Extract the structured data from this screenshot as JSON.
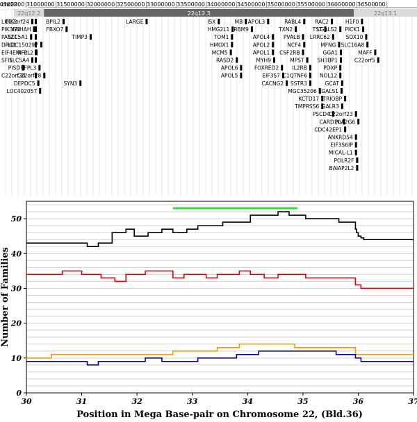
{
  "genome_browser": {
    "chrom_label": "chr22:",
    "coords": [
      "30500000",
      "31000000",
      "31500000",
      "32000000",
      "32500000",
      "33000000",
      "33500000",
      "34000000",
      "34500000",
      "35000000",
      "35500000",
      "36000000",
      "36500000"
    ],
    "bands": [
      {
        "label": "22q12.2",
        "start": 30.3,
        "end": 30.8,
        "color": "#d9d9d9",
        "text_color": "#777777"
      },
      {
        "label": "22q12.3",
        "start": 30.8,
        "end": 35.95,
        "color": "#666666",
        "text_color": "#ffffff"
      },
      {
        "label": "22q13.1",
        "start": 35.95,
        "end": 37.0,
        "color": "#d9d9d9",
        "text_color": "#777777"
      }
    ],
    "genes": [
      {
        "name": "LIMK2",
        "pos": 30.3,
        "row": 0,
        "side": "left"
      },
      {
        "name": "PIK3IP1",
        "pos": 30.3,
        "row": 1,
        "side": "left"
      },
      {
        "name": "PATZ1",
        "pos": 30.3,
        "row": 2,
        "side": "left"
      },
      {
        "name": "DRG1",
        "pos": 30.3,
        "row": 3,
        "side": "left"
      },
      {
        "name": "EIF4ENIF1",
        "pos": 30.3,
        "row": 4,
        "side": "left"
      },
      {
        "name": "SFI1",
        "pos": 30.3,
        "row": 5,
        "side": "left"
      },
      {
        "name": "C22orf30",
        "pos": 30.3,
        "row": 7,
        "side": "left"
      },
      {
        "name": "C22orf24",
        "pos": 30.6,
        "row": 0,
        "side": "right"
      },
      {
        "name": "YWHAH",
        "pos": 30.63,
        "row": 1,
        "side": "right"
      },
      {
        "name": "SLC5A1",
        "pos": 30.58,
        "row": 2,
        "side": "right"
      },
      {
        "name": "LOC150297",
        "pos": 30.75,
        "row": 3,
        "side": "right"
      },
      {
        "name": "RFPL2",
        "pos": 30.67,
        "row": 4,
        "side": "right"
      },
      {
        "name": "SLC5A4",
        "pos": 30.6,
        "row": 5,
        "side": "right"
      },
      {
        "name": "PISD",
        "pos": 30.45,
        "row": 6,
        "side": "right"
      },
      {
        "name": "RFPL3",
        "pos": 30.72,
        "row": 6,
        "side": "right"
      },
      {
        "name": "C22orf28",
        "pos": 30.8,
        "row": 7,
        "side": "right"
      },
      {
        "name": "DEPDC5",
        "pos": 30.7,
        "row": 8,
        "side": "right"
      },
      {
        "name": "LOC402057",
        "pos": 30.73,
        "row": 9,
        "side": "right"
      },
      {
        "name": "BPIL2",
        "pos": 31.12,
        "row": 0,
        "side": "right"
      },
      {
        "name": "FBXO7",
        "pos": 31.17,
        "row": 1,
        "side": "right"
      },
      {
        "name": "TIMP3",
        "pos": 31.57,
        "row": 2,
        "side": "right"
      },
      {
        "name": "SYN3",
        "pos": 31.4,
        "row": 8,
        "side": "right"
      },
      {
        "name": "LARGE",
        "pos": 32.5,
        "row": 0,
        "side": "right"
      },
      {
        "name": "ISX",
        "pos": 33.7,
        "row": 0,
        "side": "right"
      },
      {
        "name": "HMG2L1",
        "pos": 33.93,
        "row": 1,
        "side": "right"
      },
      {
        "name": "TOM1",
        "pos": 33.92,
        "row": 2,
        "side": "right"
      },
      {
        "name": "HMOX1",
        "pos": 33.92,
        "row": 3,
        "side": "right"
      },
      {
        "name": "MCM5",
        "pos": 33.9,
        "row": 4,
        "side": "right"
      },
      {
        "name": "RASD2",
        "pos": 34.0,
        "row": 5,
        "side": "right"
      },
      {
        "name": "APOL6",
        "pos": 34.07,
        "row": 6,
        "side": "right"
      },
      {
        "name": "APOL5",
        "pos": 34.07,
        "row": 7,
        "side": "right"
      },
      {
        "name": "MB",
        "pos": 34.15,
        "row": 0,
        "side": "right"
      },
      {
        "name": "RBM9",
        "pos": 34.25,
        "row": 1,
        "side": "right"
      },
      {
        "name": "APOL3",
        "pos": 34.52,
        "row": 0,
        "side": "right"
      },
      {
        "name": "APOL4",
        "pos": 34.6,
        "row": 2,
        "side": "right"
      },
      {
        "name": "APOL2",
        "pos": 34.6,
        "row": 3,
        "side": "right"
      },
      {
        "name": "APOL1",
        "pos": 34.6,
        "row": 4,
        "side": "right"
      },
      {
        "name": "MYH9",
        "pos": 34.62,
        "row": 5,
        "side": "right"
      },
      {
        "name": "FOXRED2",
        "pos": 34.75,
        "row": 6,
        "side": "right"
      },
      {
        "name": "EIF3S7",
        "pos": 34.77,
        "row": 7,
        "side": "right"
      },
      {
        "name": "CACNG2",
        "pos": 34.83,
        "row": 8,
        "side": "right"
      },
      {
        "name": "TXN2",
        "pos": 34.98,
        "row": 1,
        "side": "right"
      },
      {
        "name": "RABL4",
        "pos": 35.12,
        "row": 0,
        "side": "right"
      },
      {
        "name": "PVALB",
        "pos": 35.1,
        "row": 2,
        "side": "right"
      },
      {
        "name": "NCF4",
        "pos": 35.12,
        "row": 3,
        "side": "right"
      },
      {
        "name": "CSF2RB",
        "pos": 35.1,
        "row": 4,
        "side": "right"
      },
      {
        "name": "MPST",
        "pos": 35.17,
        "row": 5,
        "side": "right"
      },
      {
        "name": "IL2RB",
        "pos": 35.22,
        "row": 6,
        "side": "right"
      },
      {
        "name": "C1QTNF6",
        "pos": 35.22,
        "row": 7,
        "side": "right"
      },
      {
        "name": "SSTR3",
        "pos": 35.22,
        "row": 8,
        "side": "right"
      },
      {
        "name": "MGC35206",
        "pos": 35.38,
        "row": 9,
        "side": "right"
      },
      {
        "name": "KCTD17",
        "pos": 35.42,
        "row": 10,
        "side": "right"
      },
      {
        "name": "TMPRSS6",
        "pos": 35.42,
        "row": 11,
        "side": "right"
      },
      {
        "name": "TST",
        "pos": 35.47,
        "row": 1,
        "side": "right"
      },
      {
        "name": "RAC2",
        "pos": 35.58,
        "row": 0,
        "side": "right"
      },
      {
        "name": "LRRC62",
        "pos": 35.6,
        "row": 2,
        "side": "right"
      },
      {
        "name": "LGALS2",
        "pos": 35.72,
        "row": 1,
        "side": "right"
      },
      {
        "name": "MFNG",
        "pos": 35.7,
        "row": 3,
        "side": "right"
      },
      {
        "name": "GGA1",
        "pos": 35.73,
        "row": 4,
        "side": "right"
      },
      {
        "name": "SH3BP1",
        "pos": 35.73,
        "row": 5,
        "side": "right"
      },
      {
        "name": "PDXP",
        "pos": 35.72,
        "row": 6,
        "side": "right"
      },
      {
        "name": "NOL12",
        "pos": 35.72,
        "row": 7,
        "side": "right"
      },
      {
        "name": "GCAT",
        "pos": 35.75,
        "row": 8,
        "side": "right"
      },
      {
        "name": "LGALS1",
        "pos": 35.74,
        "row": 9,
        "side": "right"
      },
      {
        "name": "TRIOBP",
        "pos": 35.8,
        "row": 10,
        "side": "right"
      },
      {
        "name": "GALR3",
        "pos": 35.75,
        "row": 11,
        "side": "right"
      },
      {
        "name": "PSCD4",
        "pos": 35.6,
        "row": 12,
        "side": "right"
      },
      {
        "name": "C22orf23",
        "pos": 35.98,
        "row": 12,
        "side": "right"
      },
      {
        "name": "CARD10",
        "pos": 35.78,
        "row": 13,
        "side": "right"
      },
      {
        "name": "PLA2G6",
        "pos": 36.02,
        "row": 13,
        "side": "right"
      },
      {
        "name": "CDC42EP1",
        "pos": 35.8,
        "row": 14,
        "side": "right"
      },
      {
        "name": "ANKRD54",
        "pos": 35.98,
        "row": 15,
        "side": "right"
      },
      {
        "name": "EIF3S6IP",
        "pos": 35.98,
        "row": 16,
        "side": "right"
      },
      {
        "name": "MICAL-L1",
        "pos": 35.98,
        "row": 17,
        "side": "right"
      },
      {
        "name": "POLR2F",
        "pos": 36.0,
        "row": 18,
        "side": "right"
      },
      {
        "name": "BAIAP2L2",
        "pos": 36.0,
        "row": 19,
        "side": "right"
      },
      {
        "name": "H1F0",
        "pos": 36.08,
        "row": 0,
        "side": "right"
      },
      {
        "name": "PICK1",
        "pos": 36.1,
        "row": 1,
        "side": "right"
      },
      {
        "name": "SOX10",
        "pos": 36.15,
        "row": 2,
        "side": "right"
      },
      {
        "name": "SLC16A8",
        "pos": 36.17,
        "row": 3,
        "side": "right"
      },
      {
        "name": "MAFF",
        "pos": 36.3,
        "row": 4,
        "side": "right"
      },
      {
        "name": "C22orf5",
        "pos": 36.35,
        "row": 5,
        "side": "right"
      }
    ]
  },
  "chart_data": {
    "type": "line",
    "title": "",
    "xlabel": "Position in Mega Base-pair on Chromosome 22, (Bld.36)",
    "ylabel": "Number of Families",
    "xlim": [
      30,
      37
    ],
    "ylim": [
      0,
      55
    ],
    "x_ticks": [
      "30",
      "31",
      "32",
      "33",
      "34",
      "35",
      "36",
      "37"
    ],
    "y_ticks": [
      "0",
      "10",
      "20",
      "30",
      "40",
      "50"
    ],
    "grid": "horizontal",
    "highlight": {
      "color": "#33dd33",
      "x_start": 32.65,
      "x_end": 34.9,
      "y": 53
    },
    "series": [
      {
        "color": "#000000",
        "style": "step",
        "x": [
          30,
          31.1,
          31.3,
          31.55,
          31.8,
          31.95,
          32.2,
          32.45,
          32.65,
          32.9,
          33.1,
          33.3,
          33.55,
          33.8,
          34.05,
          34.3,
          34.55,
          34.75,
          35.05,
          35.4,
          35.65,
          35.95,
          35.97,
          36.0,
          36.05,
          36.1,
          36.2,
          36.35,
          37
        ],
        "y": [
          43,
          42,
          43,
          46,
          47,
          45,
          46,
          47,
          46,
          47,
          48,
          48,
          49,
          49,
          51,
          51,
          52,
          51,
          50,
          50,
          49,
          47,
          46,
          45,
          44.5,
          44,
          44,
          44,
          44
        ]
      },
      {
        "color": "#dd0000",
        "style": "step",
        "x": [
          30,
          30.65,
          31.0,
          31.35,
          31.6,
          31.8,
          31.95,
          32.15,
          32.4,
          32.65,
          32.85,
          33.05,
          33.25,
          33.45,
          33.7,
          33.85,
          34.05,
          34.3,
          34.55,
          34.75,
          35.05,
          35.35,
          35.65,
          35.95,
          36.05,
          36.15,
          37
        ],
        "y": [
          34,
          35,
          34,
          33,
          32,
          34,
          34,
          35,
          35,
          33,
          34,
          34,
          33,
          34,
          34,
          35,
          34,
          33,
          34,
          34,
          33,
          33,
          33,
          31,
          30,
          30,
          30
        ]
      },
      {
        "color": "#ff9900",
        "style": "step",
        "x": [
          30,
          30.45,
          31.0,
          31.35,
          31.75,
          32.2,
          32.65,
          33.05,
          33.45,
          33.85,
          34.25,
          34.55,
          34.85,
          35.2,
          35.6,
          35.95,
          36.05,
          37
        ],
        "y": [
          10,
          11,
          11,
          11,
          11,
          11,
          12,
          12,
          13,
          14,
          14,
          14,
          13,
          13,
          13,
          11,
          11,
          11
        ]
      },
      {
        "color": "#0000cc",
        "style": "step",
        "x": [
          30,
          31.1,
          31.3,
          31.8,
          32.15,
          32.45,
          32.65,
          33.1,
          33.45,
          33.8,
          34.2,
          34.5,
          34.85,
          35.2,
          35.6,
          35.95,
          36.05,
          37
        ],
        "y": [
          9,
          8,
          9,
          9,
          10,
          9,
          9,
          10,
          10,
          11,
          12,
          12,
          12,
          12,
          11,
          10,
          9,
          9
        ]
      }
    ]
  }
}
